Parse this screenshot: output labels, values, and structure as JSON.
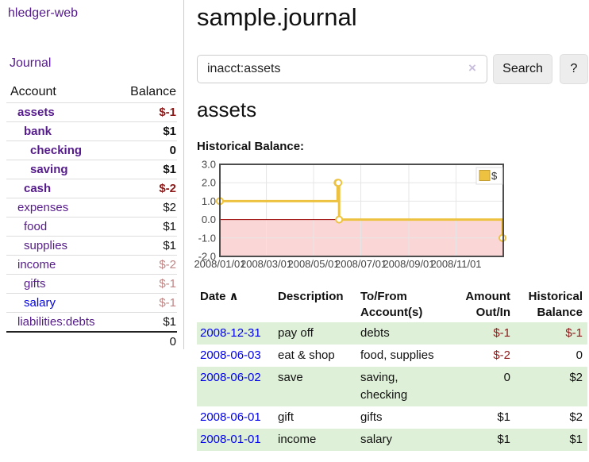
{
  "app": {
    "brand": "hledger-web",
    "nav_journal": "Journal"
  },
  "colors": {
    "link_visited_purple": "#551a8b",
    "link_blue": "#0000ee",
    "negative_strong": "#8b1a1a",
    "negative_faded": "#c08484",
    "row_green": "#dff0d8",
    "chart_gold": "#edc240",
    "chart_negative_fill": "#fbd6d6",
    "chart_zero_line": "#990000"
  },
  "sidebar": {
    "header": {
      "account": "Account",
      "balance": "Balance"
    },
    "accounts": [
      {
        "name": "assets",
        "indent": 1,
        "bold": true,
        "link_color": "purple",
        "balance": "$-1",
        "balance_style": "neg"
      },
      {
        "name": "bank",
        "indent": 2,
        "bold": true,
        "link_color": "purple",
        "balance": "$1",
        "balance_style": "pos"
      },
      {
        "name": "checking",
        "indent": 3,
        "bold": true,
        "link_color": "purple",
        "balance": "0",
        "balance_style": "pos"
      },
      {
        "name": "saving",
        "indent": 3,
        "bold": true,
        "link_color": "purple",
        "balance": "$1",
        "balance_style": "pos"
      },
      {
        "name": "cash",
        "indent": 2,
        "bold": true,
        "link_color": "purple",
        "balance": "$-2",
        "balance_style": "neg"
      },
      {
        "name": "expenses",
        "indent": 1,
        "bold": false,
        "link_color": "purple",
        "balance": "$2",
        "balance_style": "pos"
      },
      {
        "name": "food",
        "indent": 2,
        "bold": false,
        "link_color": "purple",
        "balance": "$1",
        "balance_style": "pos"
      },
      {
        "name": "supplies",
        "indent": 2,
        "bold": false,
        "link_color": "purple",
        "balance": "$1",
        "balance_style": "pos"
      },
      {
        "name": "income",
        "indent": 1,
        "bold": false,
        "link_color": "purple",
        "balance": "$-2",
        "balance_style": "negfaded"
      },
      {
        "name": "gifts",
        "indent": 2,
        "bold": false,
        "link_color": "purple",
        "balance": "$-1",
        "balance_style": "negfaded"
      },
      {
        "name": "salary",
        "indent": 2,
        "bold": false,
        "link_color": "blue",
        "balance": "$-1",
        "balance_style": "negfaded"
      },
      {
        "name": "liabilities:debts",
        "indent": 1,
        "bold": false,
        "link_color": "purple",
        "balance": "$1",
        "balance_style": "pos"
      }
    ],
    "total": "0"
  },
  "main": {
    "title": "sample.journal",
    "search": {
      "value": "inacct:assets",
      "clear_icon": "×",
      "button": "Search",
      "help_button": "?"
    },
    "account_heading": "assets",
    "chart_heading": "Historical Balance:"
  },
  "chart_data": {
    "type": "line",
    "step": true,
    "title": "Historical Balance:",
    "ylim": [
      -2,
      3
    ],
    "x_range_days": [
      0,
      366
    ],
    "y_ticks": {
      "labels": [
        "3.0",
        "2.0",
        "1.0",
        "0.0",
        "-1.0",
        "-2.0"
      ],
      "values": [
        3,
        2,
        1,
        0,
        -1,
        -2
      ]
    },
    "x_ticks": {
      "labels": [
        "2008/01/01",
        "2008/03/01",
        "2008/05/01",
        "2008/07/01",
        "2008/09/01",
        "2008/11/01"
      ],
      "days": [
        0,
        60,
        121,
        182,
        244,
        305
      ]
    },
    "series": [
      {
        "name": "$",
        "color": "#edc240",
        "points": [
          {
            "date": "2008-01-01",
            "day": 0,
            "value": 1
          },
          {
            "date": "2008-06-01",
            "day": 152,
            "value": 2
          },
          {
            "date": "2008-06-02",
            "day": 153,
            "value": 2
          },
          {
            "date": "2008-06-03",
            "day": 154,
            "value": 0
          },
          {
            "date": "2008-12-31",
            "day": 365,
            "value": -1
          }
        ]
      }
    ],
    "legend": {
      "label": "$",
      "position": "top-right"
    },
    "grid": true,
    "negative_region_shaded": true
  },
  "register": {
    "headers": {
      "date": "Date",
      "description": "Description",
      "accounts": "To/From Account(s)",
      "amount": "Amount Out/In",
      "balance": "Historical Balance"
    },
    "sort_icon": "∧",
    "rows": [
      {
        "date": "2008-12-31",
        "description": "pay off",
        "accounts": "debts",
        "amount": "$-1",
        "amount_style": "neg",
        "balance": "$-1",
        "balance_style": "neg"
      },
      {
        "date": "2008-06-03",
        "description": "eat & shop",
        "accounts": "food, supplies",
        "amount": "$-2",
        "amount_style": "neg",
        "balance": "0",
        "balance_style": "pos"
      },
      {
        "date": "2008-06-02",
        "description": "save",
        "accounts": "saving, checking",
        "amount": "0",
        "amount_style": "pos",
        "balance": "$2",
        "balance_style": "pos"
      },
      {
        "date": "2008-06-01",
        "description": "gift",
        "accounts": "gifts",
        "amount": "$1",
        "amount_style": "pos",
        "balance": "$2",
        "balance_style": "pos"
      },
      {
        "date": "2008-01-01",
        "description": "income",
        "accounts": "salary",
        "amount": "$1",
        "amount_style": "pos",
        "balance": "$1",
        "balance_style": "pos"
      }
    ]
  }
}
